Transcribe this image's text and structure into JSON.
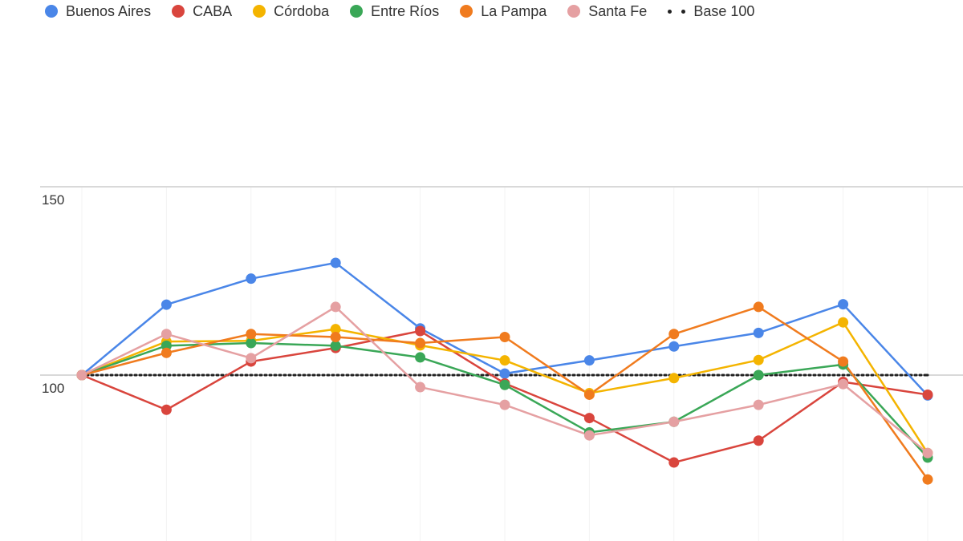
{
  "chart_data": {
    "type": "line",
    "x": [
      "1",
      "2",
      "3",
      "4",
      "5",
      "6",
      "7",
      "8",
      "9",
      "10",
      "11"
    ],
    "ylim": [
      70,
      150
    ],
    "yticks": [
      100,
      150
    ],
    "grid": true,
    "legend_position": "top-left",
    "series": [
      {
        "name": "Buenos Aires",
        "color": "#4a86e8",
        "values": [
          100,
          118.7,
          125.6,
          129.8,
          112.4,
          100.4,
          103.9,
          107.6,
          111.2,
          118.8,
          94.6
        ]
      },
      {
        "name": "CABA",
        "color": "#d9453d",
        "values": [
          100,
          90.8,
          103.6,
          107.2,
          111.7,
          97.8,
          88.6,
          76.8,
          82.6,
          98.2,
          94.8
        ]
      },
      {
        "name": "Córdoba",
        "color": "#f4b400",
        "values": [
          100,
          108.9,
          109.1,
          112.2,
          107.9,
          103.9,
          95.2,
          99.2,
          104.0,
          114.0,
          79.3
        ]
      },
      {
        "name": "Entre Ríos",
        "color": "#3aa757",
        "values": [
          100,
          107.8,
          108.5,
          107.8,
          104.7,
          97.4,
          84.8,
          87.6,
          100.0,
          102.8,
          78.1
        ]
      },
      {
        "name": "La Pampa",
        "color": "#f07b1e",
        "values": [
          100,
          105.9,
          110.9,
          110.1,
          108.5,
          110.1,
          94.8,
          110.9,
          118.1,
          103.6,
          72.3
        ]
      },
      {
        "name": "Santa Fe",
        "color": "#e5a0a2",
        "values": [
          100,
          110.9,
          104.5,
          118.1,
          96.8,
          92.1,
          84.0,
          87.6,
          92.1,
          97.6,
          79.3
        ]
      },
      {
        "name": "Base 100",
        "color": "#222222",
        "dashed": true,
        "values": [
          100,
          100,
          100,
          100,
          100,
          100,
          100,
          100,
          100,
          100,
          100
        ]
      }
    ]
  }
}
